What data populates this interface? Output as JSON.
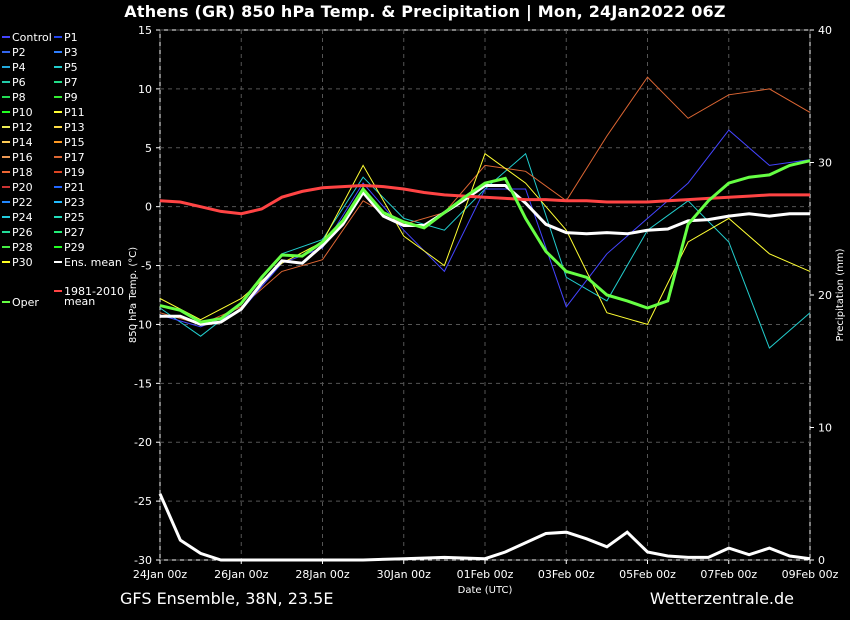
{
  "title": "Athens  (GR)  850 hPa Temp. & Precipitation | Mon, 24Jan2022 06Z",
  "footer": {
    "left": "GFS Ensemble, 38N, 23.5E",
    "right": "Wetterzentrale.de"
  },
  "chart_data": {
    "type": "line",
    "title": "Athens  (GR)  850 hPa Temp. & Precipitation | Mon, 24Jan2022 06Z",
    "xlabel": "Date (UTC)",
    "ylabel": "850 hPa Temp. (°C)",
    "y2label": "Precipitation (mm)",
    "xlim": [
      0,
      16
    ],
    "ylim": [
      -30,
      15
    ],
    "y2lim": [
      0,
      40
    ],
    "grid": true,
    "x_ticks": [
      "24Jan 00z",
      "26Jan 00z",
      "28Jan 00z",
      "30Jan 00z",
      "01Feb 00z",
      "03Feb 00z",
      "05Feb 00z",
      "07Feb 00z",
      "09Feb 00z"
    ],
    "x_tick_days": [
      0,
      2,
      4,
      6,
      8,
      10,
      12,
      14,
      16
    ],
    "y_ticks": [
      15,
      10,
      5,
      0,
      -5,
      -10,
      -15,
      -20,
      -25,
      -30
    ],
    "y2_ticks": [
      40,
      30,
      20,
      10,
      0
    ],
    "legend": [
      {
        "name": "Control",
        "color": "#4444ff"
      },
      {
        "name": "P1",
        "color": "#2244ee"
      },
      {
        "name": "P2",
        "color": "#3366ee"
      },
      {
        "name": "P3",
        "color": "#2f7fff"
      },
      {
        "name": "P4",
        "color": "#22aadd"
      },
      {
        "name": "P5",
        "color": "#22cccc"
      },
      {
        "name": "P6",
        "color": "#22ccaa"
      },
      {
        "name": "P7",
        "color": "#22dd88"
      },
      {
        "name": "P8",
        "color": "#22dd55"
      },
      {
        "name": "P9",
        "color": "#33ee33"
      },
      {
        "name": "P10",
        "color": "#22ff22"
      },
      {
        "name": "P11",
        "color": "#ffff33"
      },
      {
        "name": "P12",
        "color": "#eeee55"
      },
      {
        "name": "P13",
        "color": "#ffdd44"
      },
      {
        "name": "P14",
        "color": "#ffcc55"
      },
      {
        "name": "P15",
        "color": "#ff9922"
      },
      {
        "name": "P16",
        "color": "#ee9955"
      },
      {
        "name": "P17",
        "color": "#dd6633"
      },
      {
        "name": "P18",
        "color": "#ee6633"
      },
      {
        "name": "P19",
        "color": "#dd4422"
      },
      {
        "name": "P20",
        "color": "#cc3333"
      },
      {
        "name": "P21",
        "color": "#2266ff"
      },
      {
        "name": "P22",
        "color": "#2288ff"
      },
      {
        "name": "P23",
        "color": "#22bbff"
      },
      {
        "name": "P24",
        "color": "#22ccdd"
      },
      {
        "name": "P25",
        "color": "#22ddbb"
      },
      {
        "name": "P26",
        "color": "#22dd99"
      },
      {
        "name": "P27",
        "color": "#22ee77"
      },
      {
        "name": "P28",
        "color": "#44ee44"
      },
      {
        "name": "P29",
        "color": "#22ff22"
      },
      {
        "name": "P30",
        "color": "#ffff22"
      },
      {
        "name": "Ens. mean",
        "color": "#ffffff"
      },
      {
        "name": "1981-2010 mean",
        "color": "#ff4444"
      },
      {
        "name": "Oper",
        "color": "#66ff44"
      }
    ],
    "series": [
      {
        "name": "Ens. mean",
        "color": "#ffffff",
        "x": [
          0,
          0.5,
          1,
          1.5,
          2,
          2.5,
          3,
          3.5,
          4,
          4.5,
          5,
          5.5,
          6,
          6.5,
          7,
          7.5,
          8,
          8.5,
          9,
          9.5,
          10,
          10.5,
          11,
          11.5,
          12,
          12.5,
          13,
          13.5,
          14,
          14.5,
          15,
          15.5,
          16
        ],
        "values": [
          -9.3,
          -9.3,
          -10,
          -9.8,
          -8.7,
          -6.5,
          -4.6,
          -4.8,
          -3.3,
          -1.5,
          1.2,
          -0.8,
          -1.6,
          -1.6,
          -0.5,
          0.6,
          1.8,
          1.8,
          0.3,
          -1.5,
          -2.2,
          -2.3,
          -2.2,
          -2.3,
          -2,
          -1.9,
          -1.2,
          -1.1,
          -0.8,
          -0.6,
          -0.8,
          -0.6,
          -0.6
        ]
      },
      {
        "name": "1981-2010 mean",
        "color": "#ff4444",
        "x": [
          0,
          0.5,
          1,
          1.5,
          2,
          2.5,
          3,
          3.5,
          4,
          4.5,
          5,
          5.5,
          6,
          6.5,
          7,
          7.5,
          8,
          8.5,
          9,
          9.5,
          10,
          10.5,
          11,
          11.5,
          12,
          12.5,
          13,
          13.5,
          14,
          14.5,
          15,
          15.5,
          16
        ],
        "values": [
          0.5,
          0.4,
          0,
          -0.4,
          -0.6,
          -0.2,
          0.8,
          1.3,
          1.6,
          1.7,
          1.8,
          1.7,
          1.5,
          1.2,
          1,
          0.9,
          0.8,
          0.7,
          0.6,
          0.6,
          0.5,
          0.5,
          0.4,
          0.4,
          0.4,
          0.5,
          0.6,
          0.7,
          0.8,
          0.9,
          1,
          1,
          1
        ]
      },
      {
        "name": "Oper",
        "color": "#66ff44",
        "x": [
          0,
          0.5,
          1,
          1.5,
          2,
          2.5,
          3,
          3.5,
          4,
          4.5,
          5,
          5.5,
          6,
          6.5,
          7,
          7.5,
          8,
          8.5,
          9,
          9.5,
          10,
          10.5,
          11,
          11.5,
          12,
          12.5,
          13,
          13.5,
          14,
          14.5,
          15,
          15.5,
          16
        ],
        "values": [
          -8.4,
          -8.8,
          -9.8,
          -9.5,
          -8.2,
          -6,
          -4.1,
          -4.2,
          -3,
          -1.2,
          1.5,
          -0.5,
          -1.3,
          -1.8,
          -0.5,
          0.8,
          2,
          2.4,
          -1,
          -3.8,
          -5.5,
          -6,
          -7.5,
          -8,
          -8.6,
          -8,
          -1.5,
          0.5,
          2,
          2.5,
          2.7,
          3.5,
          3.9
        ]
      },
      {
        "name": "P5",
        "color": "#22cccc",
        "x": [
          0,
          1,
          2,
          3,
          4,
          5,
          6,
          7,
          8,
          9,
          10,
          11,
          12,
          13,
          14,
          15,
          16
        ],
        "values": [
          -8.6,
          -11,
          -8.3,
          -4,
          -2.8,
          2.5,
          -1,
          -2,
          1.5,
          4.5,
          -6,
          -8,
          -2,
          0.5,
          -3,
          -12,
          -9
        ]
      },
      {
        "name": "P17",
        "color": "#dd6633",
        "x": [
          0,
          1,
          2,
          3,
          4,
          5,
          6,
          7,
          8,
          9,
          10,
          11,
          12,
          13,
          14,
          15,
          16
        ],
        "values": [
          -9,
          -10,
          -8.5,
          -5.5,
          -4.5,
          0.5,
          -1.5,
          -0.5,
          3.5,
          3,
          0.5,
          6,
          11,
          7.5,
          9.5,
          10,
          8
        ]
      },
      {
        "name": "Control",
        "color": "#4444ff",
        "x": [
          0,
          1,
          2,
          3,
          4,
          5,
          6,
          7,
          8,
          9,
          10,
          11,
          12,
          13,
          14,
          15,
          16
        ],
        "values": [
          -9.2,
          -10.2,
          -8.8,
          -4.8,
          -3.5,
          2,
          -2,
          -5.5,
          1.5,
          1.5,
          -8.5,
          -4,
          -1,
          2,
          6.5,
          3.5,
          4
        ]
      },
      {
        "name": "P11",
        "color": "#ffff33",
        "x": [
          0,
          1,
          2,
          3,
          4,
          5,
          6,
          7,
          8,
          9,
          10,
          11,
          12,
          13,
          14,
          15,
          16
        ],
        "values": [
          -7.8,
          -9.6,
          -7.8,
          -4.8,
          -3,
          3.5,
          -2.5,
          -5,
          4.5,
          2,
          -2,
          -9,
          -10,
          -3,
          -1,
          -4,
          -5.5
        ]
      }
    ],
    "precipitation_mean": {
      "name": "Ens. mean",
      "x": [
        0,
        0.5,
        1,
        1.5,
        2,
        3,
        4,
        5,
        6,
        7,
        8,
        8.5,
        9,
        9.5,
        10,
        10.5,
        11,
        11.5,
        12,
        12.5,
        13,
        13.5,
        14,
        14.5,
        15,
        15.5,
        16
      ],
      "values": [
        5,
        1.5,
        0.5,
        0,
        0,
        0,
        0,
        0,
        0.1,
        0.2,
        0.1,
        0.6,
        1.3,
        2,
        2.1,
        1.6,
        1,
        2.1,
        0.6,
        0.3,
        0.2,
        0.2,
        0.9,
        0.4,
        0.9,
        0.3,
        0.1
      ]
    }
  }
}
